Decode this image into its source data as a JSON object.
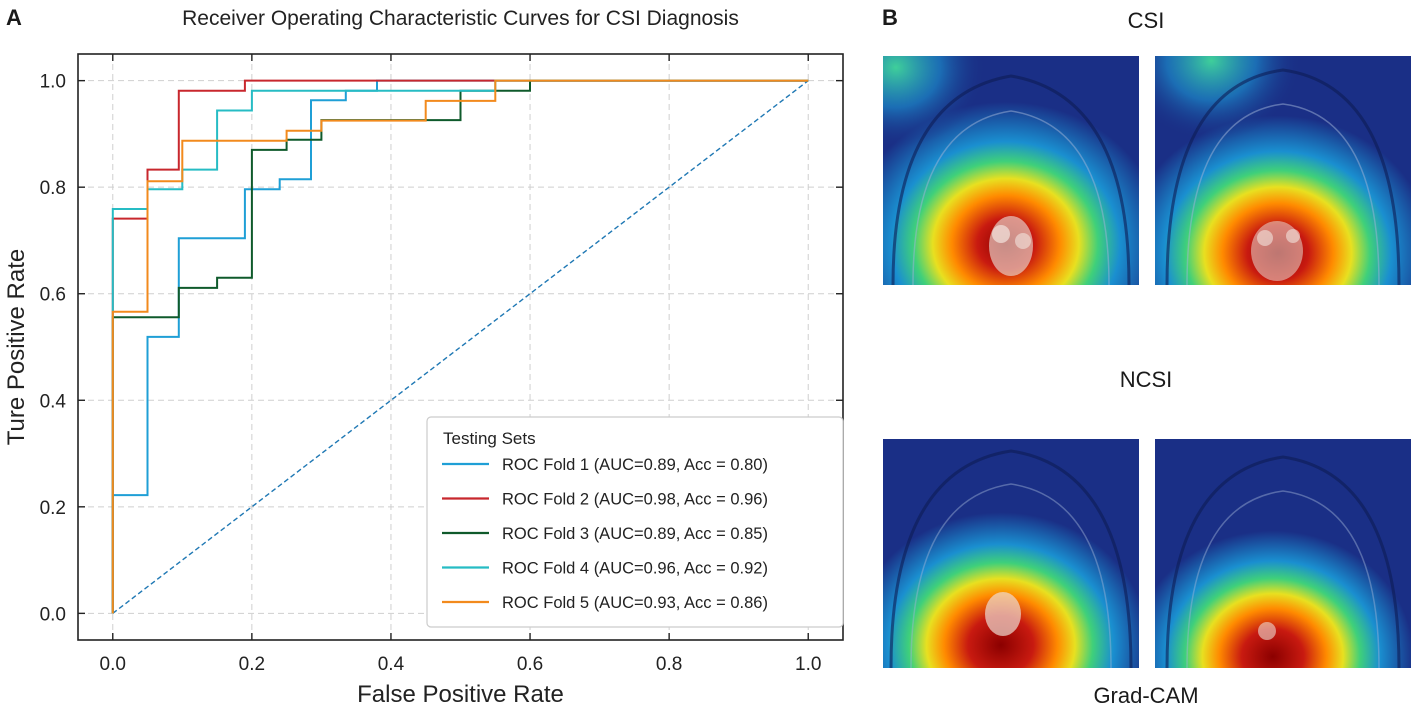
{
  "panel_a": {
    "label": "A"
  },
  "panel_b": {
    "label": "B",
    "group_top_title": "CSI",
    "group_bottom_title": "NCSI",
    "footer": "Grad-CAM"
  },
  "colors": {
    "fold1": "#1f9fd6",
    "fold2": "#c8272d",
    "fold3": "#0f5a2b",
    "fold4": "#26bcc4",
    "fold5": "#f28a1d",
    "diagonal": "#1f78b4",
    "grid": "#cfcfcf"
  },
  "chart_data": {
    "type": "line",
    "title": "Receiver Operating Characteristic Curves for CSI Diagnosis",
    "xlabel": "False Positive Rate",
    "ylabel": "Ture Positive Rate",
    "xlim": [
      -0.05,
      1.05
    ],
    "ylim": [
      -0.05,
      1.05
    ],
    "xticks": [
      "0.0",
      "0.2",
      "0.4",
      "0.6",
      "0.8",
      "1.0"
    ],
    "yticks": [
      "0.0",
      "0.2",
      "0.4",
      "0.6",
      "0.8",
      "1.0"
    ],
    "grid": true,
    "legend_title": "Testing Sets",
    "legend_position": "lower-right",
    "series": [
      {
        "name": "ROC Fold 1 (AUC=0.89, Acc = 0.80)",
        "color_key": "fold1",
        "x": [
          0,
          0,
          0.05,
          0.05,
          0.095,
          0.095,
          0.19,
          0.19,
          0.24,
          0.24,
          0.285,
          0.285,
          0.335,
          0.335,
          0.38,
          0.38,
          0.55,
          0.55,
          1.0
        ],
        "y": [
          0,
          0.222,
          0.222,
          0.519,
          0.519,
          0.704,
          0.704,
          0.796,
          0.796,
          0.815,
          0.815,
          0.963,
          0.963,
          0.981,
          0.981,
          1.0,
          1.0,
          1.0,
          1.0
        ]
      },
      {
        "name": "ROC Fold 2 (AUC=0.98, Acc = 0.96)",
        "color_key": "fold2",
        "x": [
          0,
          0,
          0.05,
          0.05,
          0.095,
          0.095,
          0.19,
          0.19,
          0.55,
          0.55,
          1.0
        ],
        "y": [
          0,
          0.741,
          0.741,
          0.833,
          0.833,
          0.981,
          0.981,
          1.0,
          1.0,
          1.0,
          1.0
        ]
      },
      {
        "name": "ROC Fold 3 (AUC=0.89, Acc = 0.85)",
        "color_key": "fold3",
        "x": [
          0,
          0,
          0.095,
          0.095,
          0.15,
          0.15,
          0.2,
          0.2,
          0.25,
          0.25,
          0.3,
          0.3,
          0.35,
          0.35,
          0.5,
          0.5,
          0.6,
          0.6,
          1.0
        ],
        "y": [
          0,
          0.556,
          0.556,
          0.611,
          0.611,
          0.63,
          0.63,
          0.87,
          0.87,
          0.889,
          0.889,
          0.926,
          0.926,
          0.926,
          0.926,
          0.981,
          0.981,
          1.0,
          1.0
        ]
      },
      {
        "name": "ROC Fold 4 (AUC=0.96, Acc = 0.92)",
        "color_key": "fold4",
        "x": [
          0,
          0,
          0.05,
          0.05,
          0.1,
          0.1,
          0.15,
          0.15,
          0.2,
          0.2,
          0.55,
          0.55,
          1.0
        ],
        "y": [
          0,
          0.759,
          0.759,
          0.796,
          0.796,
          0.833,
          0.833,
          0.944,
          0.944,
          0.981,
          0.981,
          1.0,
          1.0
        ]
      },
      {
        "name": "ROC Fold 5 (AUC=0.93, Acc = 0.86)",
        "color_key": "fold5",
        "x": [
          0,
          0,
          0.05,
          0.05,
          0.1,
          0.1,
          0.25,
          0.25,
          0.3,
          0.3,
          0.45,
          0.45,
          0.5,
          0.5,
          0.55,
          0.55,
          1.0
        ],
        "y": [
          0,
          0.566,
          0.566,
          0.811,
          0.811,
          0.887,
          0.887,
          0.906,
          0.906,
          0.925,
          0.925,
          0.962,
          0.962,
          0.962,
          0.962,
          1.0,
          1.0
        ]
      }
    ],
    "reference_line": {
      "x": [
        0,
        1
      ],
      "y": [
        0,
        1
      ],
      "style": "dashed"
    }
  }
}
